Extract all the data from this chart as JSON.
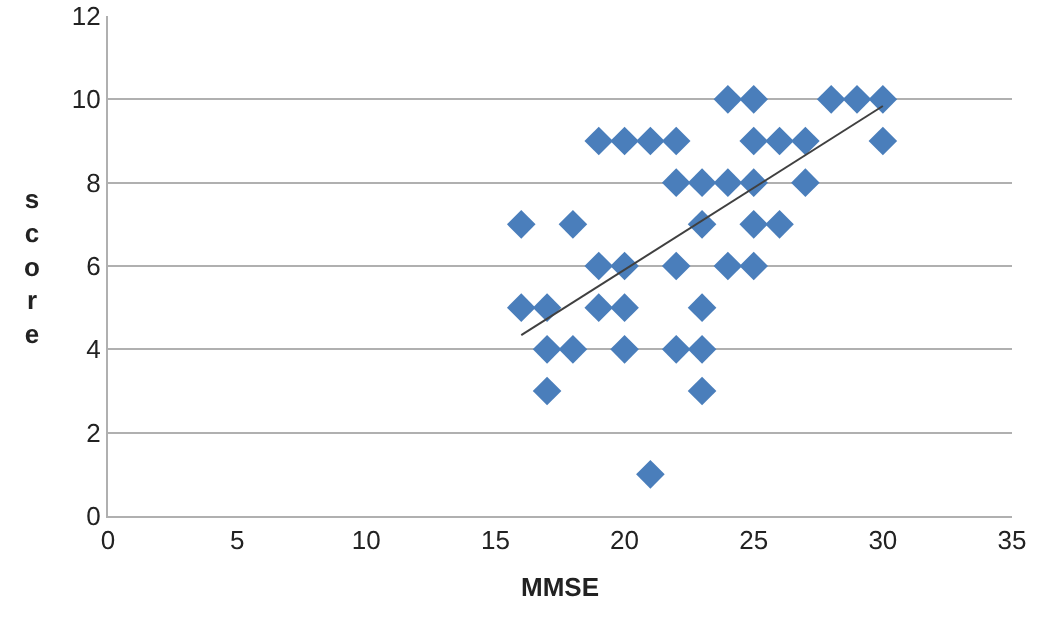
{
  "chart_data": {
    "type": "scatter",
    "xlabel": "MMSE",
    "ylabel": "score",
    "xlim": [
      0,
      35
    ],
    "ylim": [
      0,
      12
    ],
    "xticks": [
      0,
      5,
      10,
      15,
      20,
      25,
      30,
      35
    ],
    "yticks": [
      0,
      2,
      4,
      6,
      8,
      10,
      12
    ],
    "grid": "y",
    "marker": "diamond",
    "series": [
      {
        "color": "#4a7ebb",
        "x": [
          24,
          25,
          28,
          29,
          30,
          19,
          20,
          21,
          22,
          25,
          26,
          27,
          30,
          22,
          23,
          24,
          25,
          27,
          16,
          18,
          23,
          25,
          26,
          19,
          20,
          22,
          24,
          25,
          16,
          17,
          19,
          20,
          23,
          17,
          18,
          20,
          22,
          23,
          17,
          23,
          21
        ],
        "values": [
          10,
          10,
          10,
          10,
          10,
          9,
          9,
          9,
          9,
          9,
          9,
          9,
          9,
          8,
          8,
          8,
          8,
          8,
          7,
          7,
          7,
          7,
          7,
          6,
          6,
          6,
          6,
          6,
          5,
          5,
          5,
          5,
          5,
          4,
          4,
          4,
          4,
          4,
          3,
          3,
          1
        ]
      },
      {
        "type": "line",
        "color": "#404040",
        "x": [
          16,
          30
        ],
        "values": [
          4.34,
          9.84
        ],
        "marker": "none"
      }
    ]
  }
}
